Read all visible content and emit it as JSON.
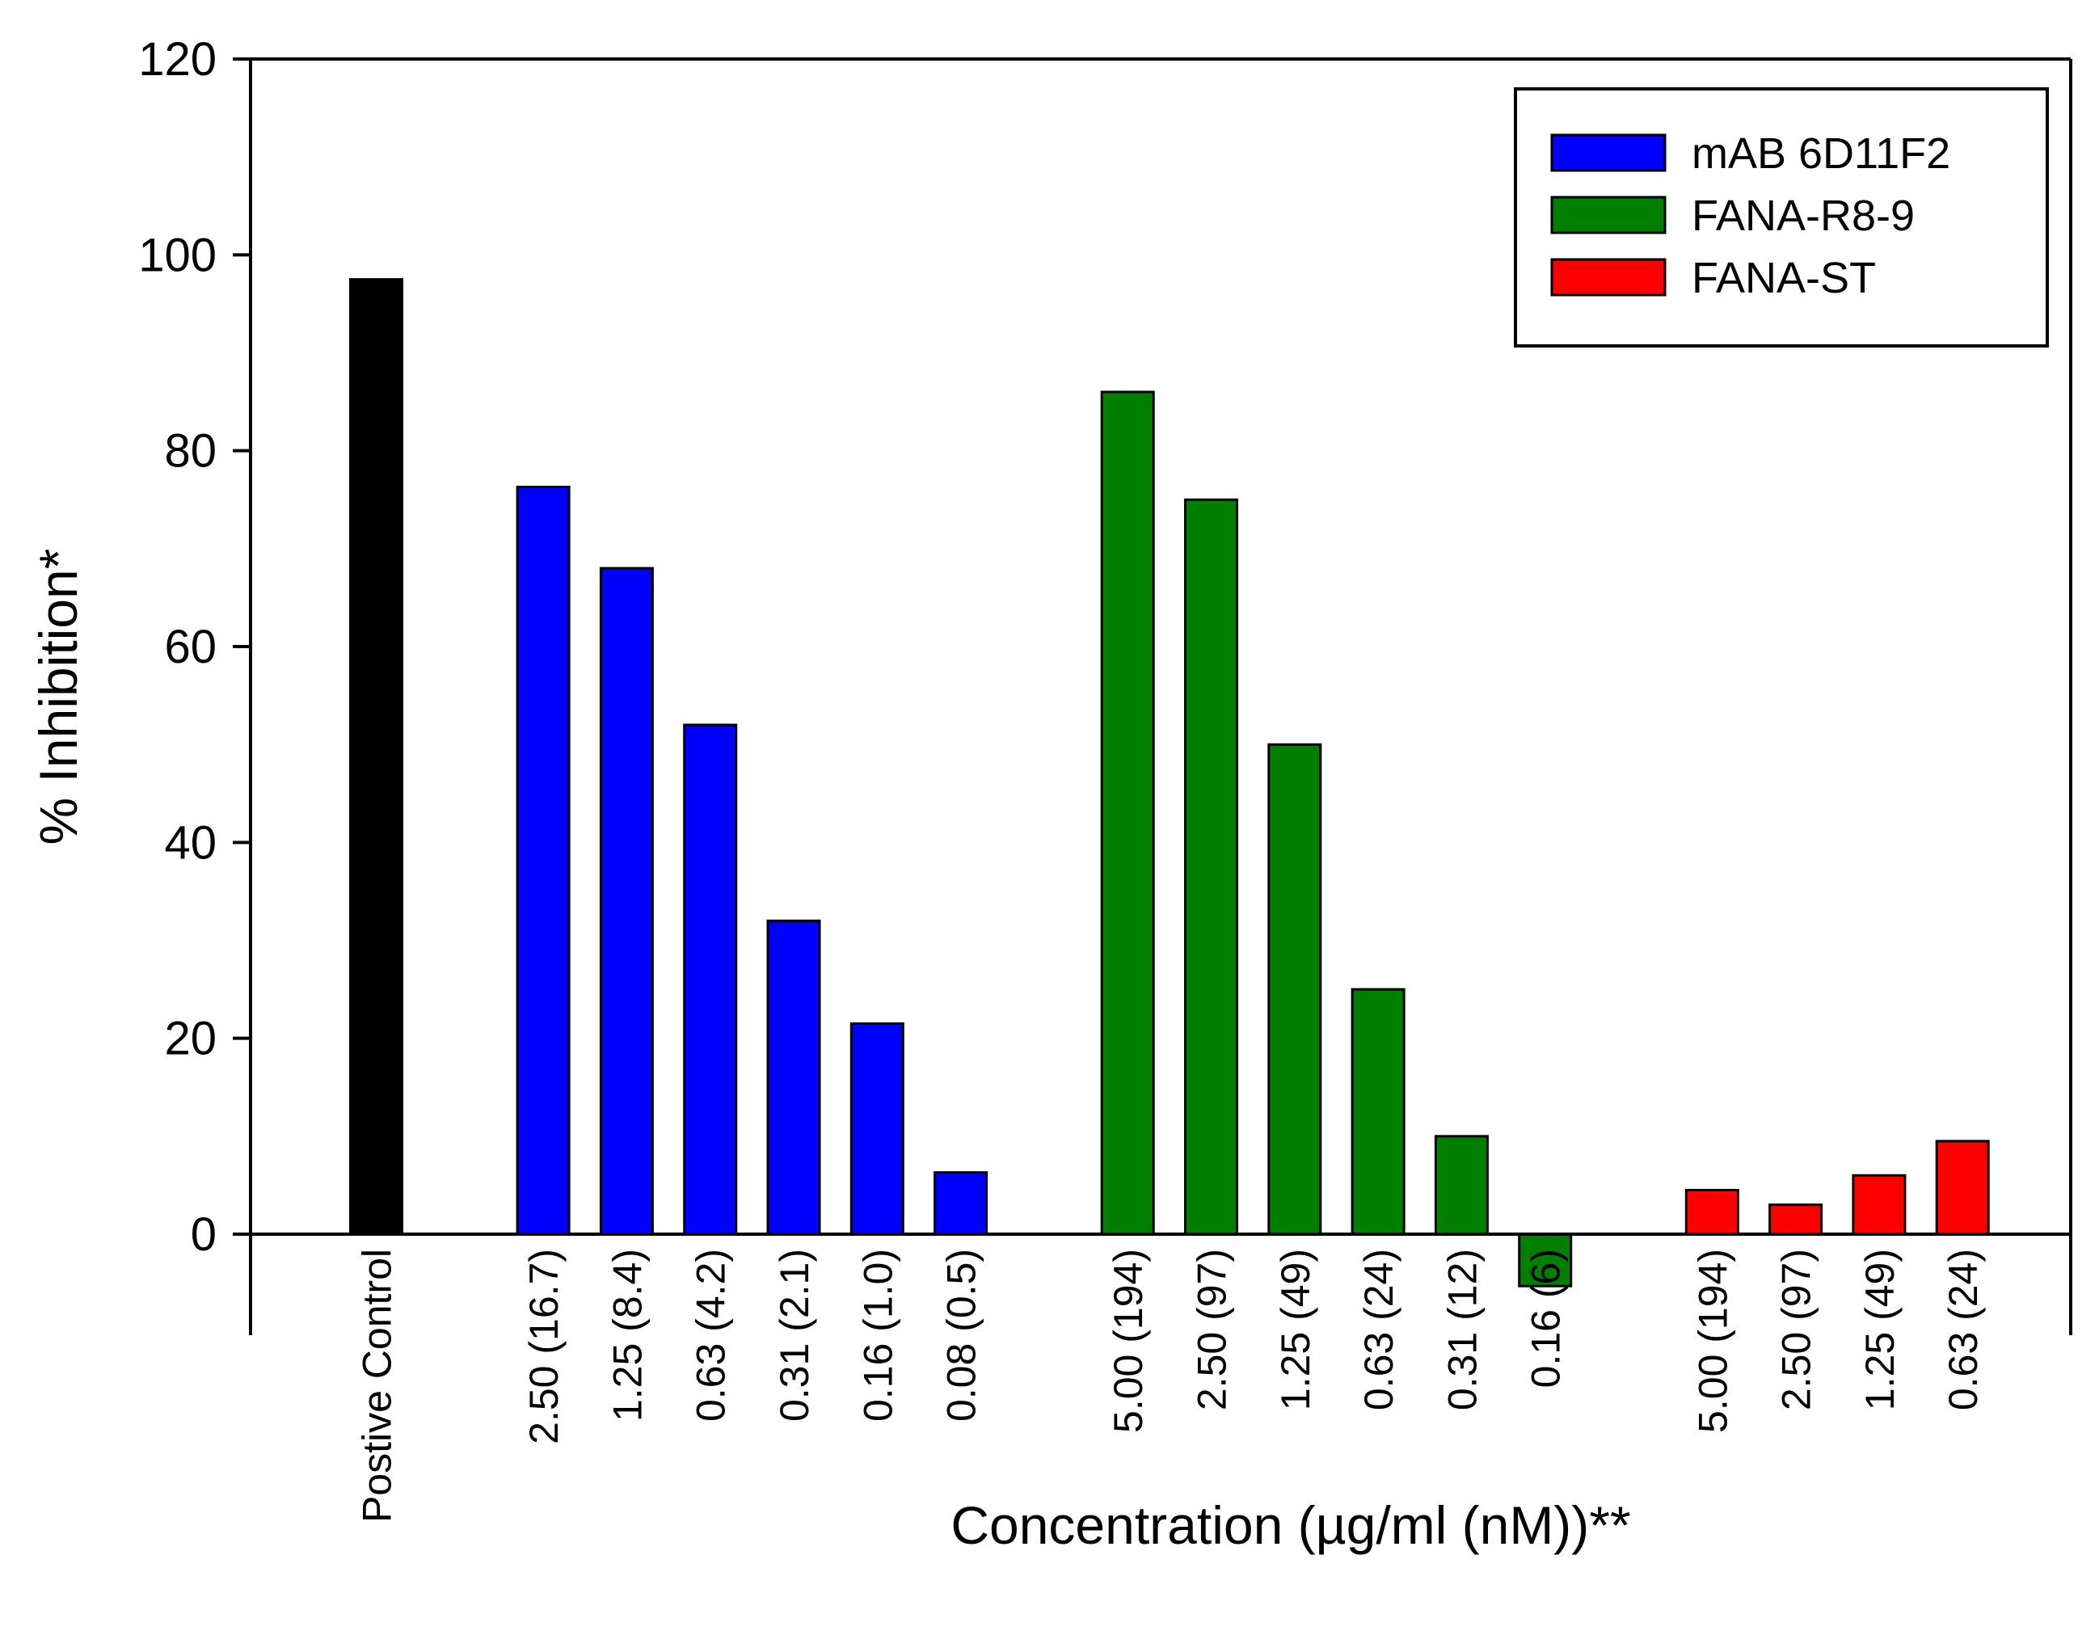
{
  "chart_data": {
    "type": "bar",
    "title": "",
    "xlabel": "Concentration (µg/ml (nM))**",
    "ylabel": "% Inhibition*",
    "ylim": [
      -10,
      120
    ],
    "yticks": [
      0,
      20,
      40,
      60,
      80,
      100,
      120
    ],
    "ytick_labels": [
      "0",
      "20",
      "40",
      "60",
      "80",
      "100",
      "120"
    ],
    "grid": false,
    "legend_position": "top-right",
    "legend": [
      {
        "name": "mAB 6D11F2",
        "color": "#0000ff"
      },
      {
        "name": "FANA-R8-9",
        "color": "#007f00"
      },
      {
        "name": "FANA-ST",
        "color": "#ff0000"
      }
    ],
    "bars": [
      {
        "label": "Postive Control",
        "value": 97.5,
        "group": "control",
        "color": "#000000",
        "slot": 0
      },
      {
        "label": "2.50 (16.7)",
        "value": 76.3,
        "group": "mAB 6D11F2",
        "color": "#0000ff",
        "slot": 2
      },
      {
        "label": "1.25 (8.4)",
        "value": 68.0,
        "group": "mAB 6D11F2",
        "color": "#0000ff",
        "slot": 3
      },
      {
        "label": "0.63 (4.2)",
        "value": 52.0,
        "group": "mAB 6D11F2",
        "color": "#0000ff",
        "slot": 4
      },
      {
        "label": "0.31 (2.1)",
        "value": 32.0,
        "group": "mAB 6D11F2",
        "color": "#0000ff",
        "slot": 5
      },
      {
        "label": "0.16 (1.0)",
        "value": 21.5,
        "group": "mAB 6D11F2",
        "color": "#0000ff",
        "slot": 6
      },
      {
        "label": "0.08 (0.5)",
        "value": 6.3,
        "group": "mAB 6D11F2",
        "color": "#0000ff",
        "slot": 7
      },
      {
        "label": "5.00 (194)",
        "value": 86.0,
        "group": "FANA-R8-9",
        "color": "#007f00",
        "slot": 9
      },
      {
        "label": "2.50 (97)",
        "value": 75.0,
        "group": "FANA-R8-9",
        "color": "#007f00",
        "slot": 10
      },
      {
        "label": "1.25 (49)",
        "value": 50.0,
        "group": "FANA-R8-9",
        "color": "#007f00",
        "slot": 11
      },
      {
        "label": "0.63 (24)",
        "value": 25.0,
        "group": "FANA-R8-9",
        "color": "#007f00",
        "slot": 12
      },
      {
        "label": "0.31 (12)",
        "value": 10.0,
        "group": "FANA-R8-9",
        "color": "#007f00",
        "slot": 13
      },
      {
        "label": "0.16 (6)",
        "value": -5.3,
        "group": "FANA-R8-9",
        "color": "#007f00",
        "slot": 14
      },
      {
        "label": "5.00 (194)",
        "value": 4.5,
        "group": "FANA-ST",
        "color": "#ff0000",
        "slot": 16
      },
      {
        "label": "2.50 (97)",
        "value": 3.0,
        "group": "FANA-ST",
        "color": "#ff0000",
        "slot": 17
      },
      {
        "label": "1.25 (49)",
        "value": 6.0,
        "group": "FANA-ST",
        "color": "#ff0000",
        "slot": 18
      },
      {
        "label": "0.63 (24)",
        "value": 9.5,
        "group": "FANA-ST",
        "color": "#ff0000",
        "slot": 19
      }
    ]
  }
}
